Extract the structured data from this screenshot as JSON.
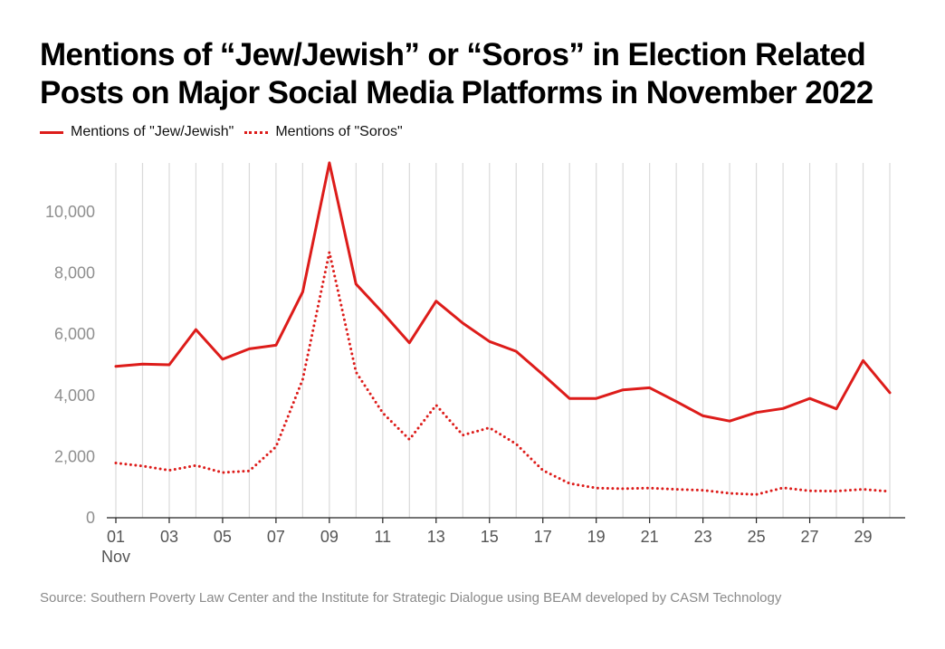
{
  "chart_data": {
    "type": "line",
    "title": "Mentions of “Jew/Jewish” or “Soros” in Election Related Posts on Major Social Media Platforms in November 2022",
    "xlabel": "",
    "ylabel": "",
    "x": [
      1,
      2,
      3,
      4,
      5,
      6,
      7,
      8,
      9,
      10,
      11,
      12,
      13,
      14,
      15,
      16,
      17,
      18,
      19,
      20,
      21,
      22,
      23,
      24,
      25,
      26,
      27,
      28,
      29,
      30
    ],
    "xlim": [
      1,
      30
    ],
    "ylim": [
      0,
      11600
    ],
    "x_ticks": [
      {
        "value": 1,
        "label": "01"
      },
      {
        "value": 3,
        "label": "03"
      },
      {
        "value": 5,
        "label": "05"
      },
      {
        "value": 7,
        "label": "07"
      },
      {
        "value": 9,
        "label": "09"
      },
      {
        "value": 11,
        "label": "11"
      },
      {
        "value": 13,
        "label": "13"
      },
      {
        "value": 15,
        "label": "15"
      },
      {
        "value": 17,
        "label": "17"
      },
      {
        "value": 19,
        "label": "19"
      },
      {
        "value": 21,
        "label": "21"
      },
      {
        "value": 23,
        "label": "23"
      },
      {
        "value": 25,
        "label": "25"
      },
      {
        "value": 27,
        "label": "27"
      },
      {
        "value": 29,
        "label": "29"
      }
    ],
    "x_sublabel": "Nov",
    "y_ticks": [
      {
        "value": 0,
        "label": "0"
      },
      {
        "value": 2000,
        "label": "2,000"
      },
      {
        "value": 4000,
        "label": "4,000"
      },
      {
        "value": 6000,
        "label": "6,000"
      },
      {
        "value": 8000,
        "label": "8,000"
      },
      {
        "value": 10000,
        "label": "10,000"
      }
    ],
    "grid": "vertical",
    "legend_position": "top-left",
    "series": [
      {
        "name": "Mentions of \"Jew/Jewish\"",
        "style": "solid",
        "color": "#dd1c1a",
        "values": [
          4950,
          5020,
          5000,
          6150,
          5180,
          5520,
          5640,
          7380,
          11600,
          7640,
          6700,
          5720,
          7080,
          6360,
          5760,
          5440,
          4680,
          3900,
          3900,
          4180,
          4250,
          3800,
          3330,
          3160,
          3440,
          3570,
          3900,
          3560,
          5140,
          4090
        ]
      },
      {
        "name": "Mentions of \"Soros\"",
        "style": "dotted",
        "color": "#dd1c1a",
        "values": [
          1790,
          1690,
          1550,
          1710,
          1480,
          1530,
          2320,
          4520,
          8680,
          4760,
          3430,
          2560,
          3680,
          2700,
          2940,
          2410,
          1550,
          1120,
          970,
          950,
          970,
          930,
          900,
          800,
          760,
          980,
          880,
          870,
          930,
          860
        ]
      }
    ]
  },
  "source": "Source: Southern Poverty Law Center and the Institute for Strategic Dialogue using BEAM developed by CASM Technology",
  "colors": {
    "series": "#dd1c1a",
    "grid": "#dadada",
    "axis": "#222222",
    "tick_text": "#8f8f8f",
    "x_tick_text": "#555555",
    "source_text": "#8a8a8a"
  }
}
